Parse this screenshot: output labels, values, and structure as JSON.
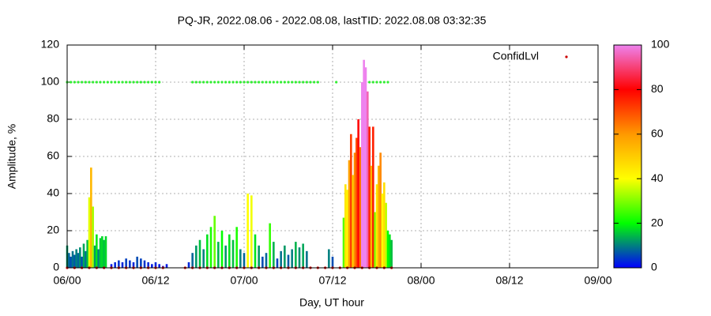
{
  "chart_data": {
    "type": "impulse",
    "title": "PQ-JR, 2022.08.06 - 2022.08.08, lastTID: 2022.08.08 03:32:35",
    "xlabel": "Day, UT hour",
    "ylabel": "Amplitude, %",
    "xlim": [
      0,
      72
    ],
    "xticks": [
      {
        "value": 0,
        "label": "06/00"
      },
      {
        "value": 12,
        "label": "06/12"
      },
      {
        "value": 24,
        "label": "07/00"
      },
      {
        "value": 36,
        "label": "07/12"
      },
      {
        "value": 48,
        "label": "08/00"
      },
      {
        "value": 60,
        "label": "08/12"
      },
      {
        "value": 72,
        "label": "09/00"
      }
    ],
    "ylim": [
      0,
      120
    ],
    "yticks": [
      0,
      20,
      40,
      60,
      80,
      100,
      120
    ],
    "grid": true,
    "legend": "top-right",
    "cblim": [
      0,
      100
    ],
    "cbticks": [
      0,
      20,
      40,
      60,
      80,
      100
    ],
    "palette": [
      "#0000ff",
      "#00ff00",
      "#ffff00",
      "#ff9900",
      "#ff0000",
      "#ee82ee"
    ],
    "series": [
      {
        "kind": "impulse",
        "color_by_value": true,
        "x": [
          0,
          0.25,
          0.5,
          0.75,
          1,
          1.25,
          1.5,
          1.75,
          2,
          2.25,
          2.5,
          2.75,
          3,
          3.25,
          3.5,
          3.75,
          4,
          4.25,
          4.5,
          4.75,
          5,
          5.25,
          6,
          6.5,
          7,
          7.5,
          8,
          8.5,
          9,
          9.5,
          10,
          10.5,
          11,
          11.5,
          12,
          12.5,
          13,
          13.5,
          16.5,
          17,
          17.5,
          18,
          18.5,
          19,
          19.5,
          20,
          20.5,
          21,
          21.5,
          22,
          22.5,
          23,
          23.5,
          24,
          24.5,
          25,
          25.5,
          26,
          26.5,
          27,
          27.5,
          28,
          28.5,
          29,
          29.5,
          30,
          30.5,
          31,
          31.5,
          32,
          32.5,
          35.5,
          36,
          37.5,
          37.75,
          38,
          38.25,
          38.5,
          38.75,
          39,
          39.25,
          39.5,
          39.75,
          40,
          40.25,
          40.5,
          40.75,
          41,
          41.25,
          41.5,
          41.75,
          42,
          42.25,
          42.5,
          42.75,
          43,
          43.25,
          43.5,
          43.75,
          44
        ],
        "values": [
          12,
          8,
          6,
          9,
          7,
          10,
          8,
          11,
          6,
          13,
          9,
          15,
          38,
          54,
          33,
          12,
          18,
          10,
          16,
          17,
          15,
          17,
          2,
          3,
          4,
          3,
          5,
          4,
          3,
          6,
          5,
          4,
          3,
          2,
          3,
          2,
          1,
          2,
          3,
          8,
          12,
          15,
          10,
          18,
          22,
          28,
          14,
          20,
          12,
          18,
          15,
          22,
          10,
          8,
          40,
          39,
          18,
          12,
          6,
          8,
          24,
          14,
          5,
          9,
          12,
          7,
          10,
          14,
          11,
          13,
          9,
          10,
          6,
          27,
          45,
          42,
          58,
          72,
          50,
          62,
          70,
          80,
          65,
          100,
          112,
          108,
          95,
          76,
          55,
          76,
          30,
          45,
          55,
          62,
          40,
          46,
          35,
          20,
          18,
          15
        ]
      },
      {
        "kind": "dots",
        "color": "#33ee33",
        "x": [
          0,
          0.5,
          1,
          1.5,
          2,
          2.5,
          3,
          3.5,
          4,
          4.5,
          5,
          5.5,
          6,
          6.5,
          7,
          7.5,
          8,
          8.5,
          9,
          9.5,
          10,
          10.5,
          11,
          11.5,
          12,
          12.5,
          17,
          17.5,
          18,
          18.5,
          19,
          19.5,
          20,
          20.5,
          21,
          21.5,
          22,
          22.5,
          23,
          23.5,
          24,
          24.5,
          25,
          25.5,
          26,
          26.5,
          27,
          27.5,
          28,
          28.5,
          29,
          29.5,
          30,
          30.5,
          31,
          31.5,
          32,
          32.5,
          33,
          33.5,
          34,
          36.5,
          41,
          41.5,
          42,
          42.5,
          43,
          43.5
        ],
        "values": [
          100,
          100,
          100,
          100,
          100,
          100,
          100,
          100,
          100,
          100,
          100,
          100,
          100,
          100,
          100,
          100,
          100,
          100,
          100,
          100,
          100,
          100,
          100,
          100,
          100,
          100,
          100,
          100,
          100,
          100,
          100,
          100,
          100,
          100,
          100,
          100,
          100,
          100,
          100,
          100,
          100,
          100,
          100,
          100,
          100,
          100,
          100,
          100,
          100,
          100,
          100,
          100,
          100,
          100,
          100,
          100,
          100,
          100,
          100,
          100,
          100,
          100,
          100,
          100,
          100,
          100,
          100,
          100
        ]
      },
      {
        "kind": "dots",
        "name": "ConfidLvl",
        "color": "#cc0000",
        "x": [
          0,
          1,
          2,
          3,
          4,
          5,
          6,
          7,
          8,
          9,
          10,
          11,
          12,
          13,
          16,
          17,
          18,
          19,
          20,
          21,
          22,
          23,
          24,
          25,
          26,
          27,
          28,
          29,
          30,
          31,
          32,
          33,
          34,
          35,
          36,
          37,
          38,
          39,
          40,
          41,
          42,
          43,
          44
        ],
        "values": [
          0,
          0,
          0,
          0,
          0,
          0,
          0,
          0,
          0,
          0,
          0,
          0,
          0,
          0,
          0,
          0,
          0,
          0,
          0,
          0,
          0,
          0,
          0,
          0,
          0,
          0,
          0,
          0,
          0,
          0,
          0,
          0,
          0,
          0,
          0,
          0,
          0,
          0,
          0,
          0,
          0,
          0,
          0
        ]
      }
    ]
  }
}
